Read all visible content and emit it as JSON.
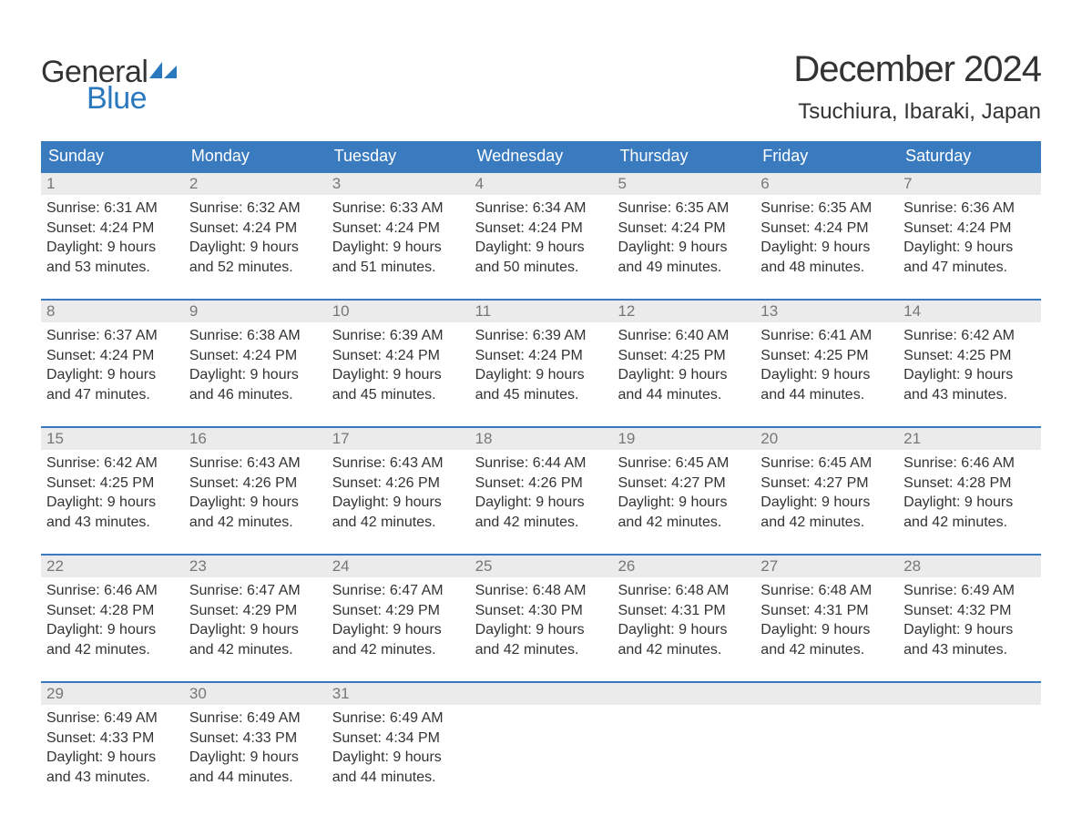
{
  "brand": {
    "word1": "General",
    "word2": "Blue",
    "flag_color": "#2a78bd",
    "word1_color": "#333333",
    "word2_color": "#2a78bd"
  },
  "title": "December 2024",
  "location": "Tsuchiura, Ibaraki, Japan",
  "colors": {
    "header_bg": "#3a7bbf",
    "header_text": "#ffffff",
    "week_border": "#3a7bbf",
    "daynum_bg": "#ebebeb",
    "daynum_text": "#777777",
    "body_text": "#333333",
    "page_bg": "#ffffff"
  },
  "typography": {
    "title_fontsize": 40,
    "location_fontsize": 24,
    "weekday_fontsize": 18,
    "daynum_fontsize": 17,
    "cell_fontsize": 16,
    "logo_fontsize": 34
  },
  "weekdays": [
    "Sunday",
    "Monday",
    "Tuesday",
    "Wednesday",
    "Thursday",
    "Friday",
    "Saturday"
  ],
  "weeks": [
    [
      {
        "num": "1",
        "sunrise": "6:31 AM",
        "sunset": "4:24 PM",
        "daylight1": "Daylight: 9 hours",
        "daylight2": "and 53 minutes."
      },
      {
        "num": "2",
        "sunrise": "6:32 AM",
        "sunset": "4:24 PM",
        "daylight1": "Daylight: 9 hours",
        "daylight2": "and 52 minutes."
      },
      {
        "num": "3",
        "sunrise": "6:33 AM",
        "sunset": "4:24 PM",
        "daylight1": "Daylight: 9 hours",
        "daylight2": "and 51 minutes."
      },
      {
        "num": "4",
        "sunrise": "6:34 AM",
        "sunset": "4:24 PM",
        "daylight1": "Daylight: 9 hours",
        "daylight2": "and 50 minutes."
      },
      {
        "num": "5",
        "sunrise": "6:35 AM",
        "sunset": "4:24 PM",
        "daylight1": "Daylight: 9 hours",
        "daylight2": "and 49 minutes."
      },
      {
        "num": "6",
        "sunrise": "6:35 AM",
        "sunset": "4:24 PM",
        "daylight1": "Daylight: 9 hours",
        "daylight2": "and 48 minutes."
      },
      {
        "num": "7",
        "sunrise": "6:36 AM",
        "sunset": "4:24 PM",
        "daylight1": "Daylight: 9 hours",
        "daylight2": "and 47 minutes."
      }
    ],
    [
      {
        "num": "8",
        "sunrise": "6:37 AM",
        "sunset": "4:24 PM",
        "daylight1": "Daylight: 9 hours",
        "daylight2": "and 47 minutes."
      },
      {
        "num": "9",
        "sunrise": "6:38 AM",
        "sunset": "4:24 PM",
        "daylight1": "Daylight: 9 hours",
        "daylight2": "and 46 minutes."
      },
      {
        "num": "10",
        "sunrise": "6:39 AM",
        "sunset": "4:24 PM",
        "daylight1": "Daylight: 9 hours",
        "daylight2": "and 45 minutes."
      },
      {
        "num": "11",
        "sunrise": "6:39 AM",
        "sunset": "4:24 PM",
        "daylight1": "Daylight: 9 hours",
        "daylight2": "and 45 minutes."
      },
      {
        "num": "12",
        "sunrise": "6:40 AM",
        "sunset": "4:25 PM",
        "daylight1": "Daylight: 9 hours",
        "daylight2": "and 44 minutes."
      },
      {
        "num": "13",
        "sunrise": "6:41 AM",
        "sunset": "4:25 PM",
        "daylight1": "Daylight: 9 hours",
        "daylight2": "and 44 minutes."
      },
      {
        "num": "14",
        "sunrise": "6:42 AM",
        "sunset": "4:25 PM",
        "daylight1": "Daylight: 9 hours",
        "daylight2": "and 43 minutes."
      }
    ],
    [
      {
        "num": "15",
        "sunrise": "6:42 AM",
        "sunset": "4:25 PM",
        "daylight1": "Daylight: 9 hours",
        "daylight2": "and 43 minutes."
      },
      {
        "num": "16",
        "sunrise": "6:43 AM",
        "sunset": "4:26 PM",
        "daylight1": "Daylight: 9 hours",
        "daylight2": "and 42 minutes."
      },
      {
        "num": "17",
        "sunrise": "6:43 AM",
        "sunset": "4:26 PM",
        "daylight1": "Daylight: 9 hours",
        "daylight2": "and 42 minutes."
      },
      {
        "num": "18",
        "sunrise": "6:44 AM",
        "sunset": "4:26 PM",
        "daylight1": "Daylight: 9 hours",
        "daylight2": "and 42 minutes."
      },
      {
        "num": "19",
        "sunrise": "6:45 AM",
        "sunset": "4:27 PM",
        "daylight1": "Daylight: 9 hours",
        "daylight2": "and 42 minutes."
      },
      {
        "num": "20",
        "sunrise": "6:45 AM",
        "sunset": "4:27 PM",
        "daylight1": "Daylight: 9 hours",
        "daylight2": "and 42 minutes."
      },
      {
        "num": "21",
        "sunrise": "6:46 AM",
        "sunset": "4:28 PM",
        "daylight1": "Daylight: 9 hours",
        "daylight2": "and 42 minutes."
      }
    ],
    [
      {
        "num": "22",
        "sunrise": "6:46 AM",
        "sunset": "4:28 PM",
        "daylight1": "Daylight: 9 hours",
        "daylight2": "and 42 minutes."
      },
      {
        "num": "23",
        "sunrise": "6:47 AM",
        "sunset": "4:29 PM",
        "daylight1": "Daylight: 9 hours",
        "daylight2": "and 42 minutes."
      },
      {
        "num": "24",
        "sunrise": "6:47 AM",
        "sunset": "4:29 PM",
        "daylight1": "Daylight: 9 hours",
        "daylight2": "and 42 minutes."
      },
      {
        "num": "25",
        "sunrise": "6:48 AM",
        "sunset": "4:30 PM",
        "daylight1": "Daylight: 9 hours",
        "daylight2": "and 42 minutes."
      },
      {
        "num": "26",
        "sunrise": "6:48 AM",
        "sunset": "4:31 PM",
        "daylight1": "Daylight: 9 hours",
        "daylight2": "and 42 minutes."
      },
      {
        "num": "27",
        "sunrise": "6:48 AM",
        "sunset": "4:31 PM",
        "daylight1": "Daylight: 9 hours",
        "daylight2": "and 42 minutes."
      },
      {
        "num": "28",
        "sunrise": "6:49 AM",
        "sunset": "4:32 PM",
        "daylight1": "Daylight: 9 hours",
        "daylight2": "and 43 minutes."
      }
    ],
    [
      {
        "num": "29",
        "sunrise": "6:49 AM",
        "sunset": "4:33 PM",
        "daylight1": "Daylight: 9 hours",
        "daylight2": "and 43 minutes."
      },
      {
        "num": "30",
        "sunrise": "6:49 AM",
        "sunset": "4:33 PM",
        "daylight1": "Daylight: 9 hours",
        "daylight2": "and 44 minutes."
      },
      {
        "num": "31",
        "sunrise": "6:49 AM",
        "sunset": "4:34 PM",
        "daylight1": "Daylight: 9 hours",
        "daylight2": "and 44 minutes."
      },
      null,
      null,
      null,
      null
    ]
  ],
  "labels": {
    "sunrise_prefix": "Sunrise: ",
    "sunset_prefix": "Sunset: "
  }
}
